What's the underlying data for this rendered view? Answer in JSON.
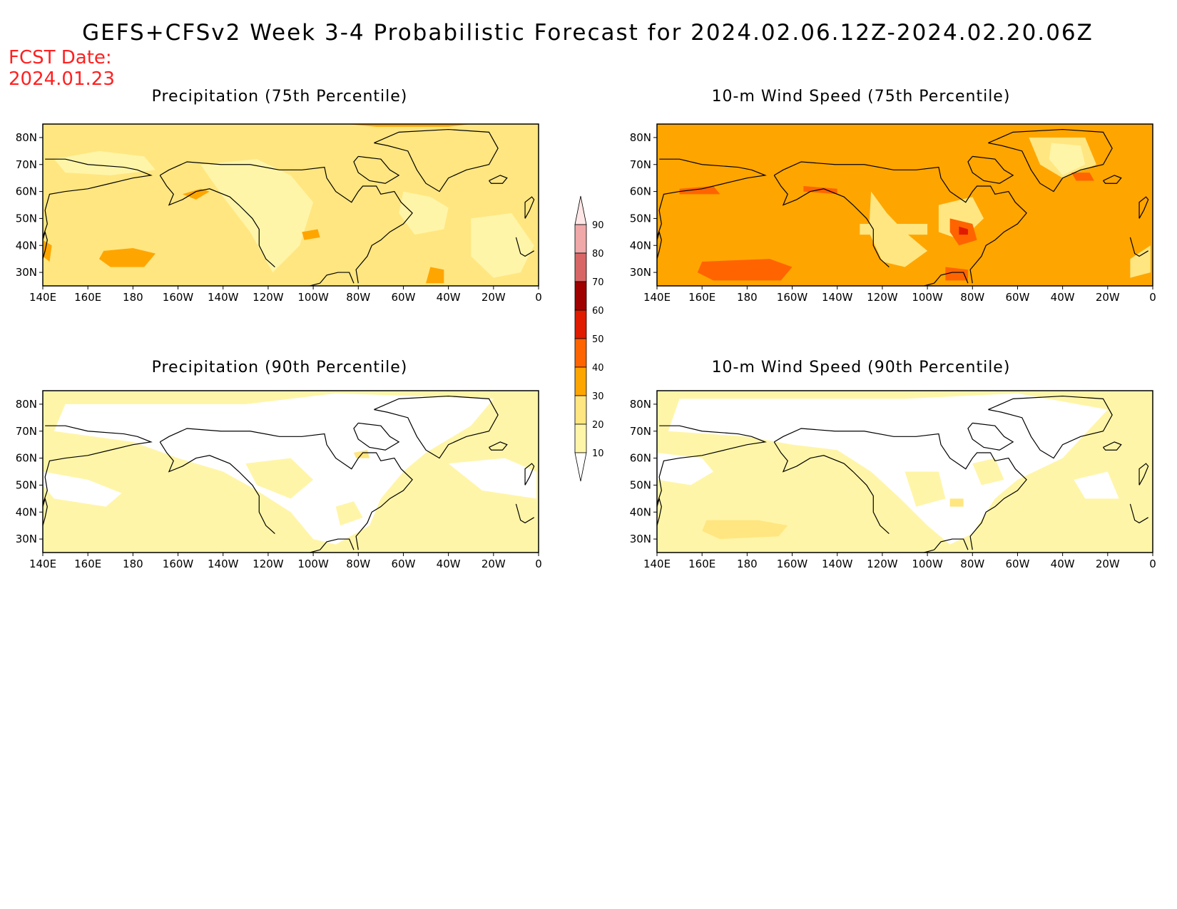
{
  "title": "GEFS+CFSv2 Week 3-4 Probabilistic Forecast for 2024.02.06.12Z-2024.02.20.06Z",
  "fcst_date_label": "FCST Date:",
  "fcst_date_value": "2024.01.23",
  "colors": {
    "lt10": "#ffffff",
    "b10_20": "#fff5a8",
    "b20_30": "#ffe680",
    "b30_40": "#ffa500",
    "b40_50": "#ff6400",
    "b50_60": "#e01b00",
    "b60_70": "#a00000",
    "b70_80": "#d96666",
    "b80_90": "#f0a8a8",
    "gt90": "#ffe6e6",
    "coast": "#000000"
  },
  "colorbar": {
    "levels": [
      "10",
      "20",
      "30",
      "40",
      "50",
      "60",
      "70",
      "80",
      "90"
    ]
  },
  "axes": {
    "lon_ticks": [
      "140E",
      "160E",
      "180",
      "160W",
      "140W",
      "120W",
      "100W",
      "80W",
      "60W",
      "40W",
      "20W",
      "0"
    ],
    "lat_ticks": [
      "80N",
      "70N",
      "60N",
      "50N",
      "40N",
      "30N"
    ],
    "lon_range": [
      140,
      360
    ],
    "lat_range": [
      25,
      85
    ]
  },
  "panels": [
    {
      "id": "precip75",
      "title": "Precipitation (75th Percentile)",
      "background_band": "b20_30"
    },
    {
      "id": "wind75",
      "title": "10-m Wind Speed (75th Percentile)",
      "background_band": "b30_40"
    },
    {
      "id": "precip90",
      "title": "Precipitation (90th Percentile)",
      "background_band": "b10_20"
    },
    {
      "id": "wind90",
      "title": "10-m Wind Speed (90th Percentile)",
      "background_band": "b10_20"
    }
  ]
}
